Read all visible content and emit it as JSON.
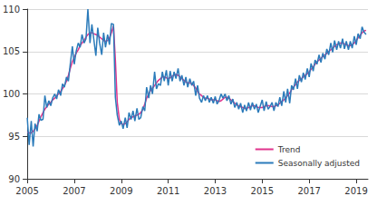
{
  "chart_data": {
    "type": "line",
    "x": [
      2005.0,
      2005.08,
      2005.17,
      2005.25,
      2005.33,
      2005.42,
      2005.5,
      2005.58,
      2005.67,
      2005.75,
      2005.83,
      2005.92,
      2006.0,
      2006.08,
      2006.17,
      2006.25,
      2006.33,
      2006.42,
      2006.5,
      2006.58,
      2006.67,
      2006.75,
      2006.83,
      2006.92,
      2007.0,
      2007.08,
      2007.17,
      2007.25,
      2007.33,
      2007.42,
      2007.5,
      2007.58,
      2007.67,
      2007.75,
      2007.83,
      2007.92,
      2008.0,
      2008.08,
      2008.17,
      2008.25,
      2008.33,
      2008.42,
      2008.5,
      2008.58,
      2008.67,
      2008.75,
      2008.83,
      2008.92,
      2009.0,
      2009.08,
      2009.17,
      2009.25,
      2009.33,
      2009.42,
      2009.5,
      2009.58,
      2009.67,
      2009.75,
      2009.83,
      2009.92,
      2010.0,
      2010.08,
      2010.17,
      2010.25,
      2010.33,
      2010.42,
      2010.5,
      2010.58,
      2010.67,
      2010.75,
      2010.83,
      2010.92,
      2011.0,
      2011.08,
      2011.17,
      2011.25,
      2011.33,
      2011.42,
      2011.5,
      2011.58,
      2011.67,
      2011.75,
      2011.83,
      2011.92,
      2012.0,
      2012.08,
      2012.17,
      2012.25,
      2012.33,
      2012.42,
      2012.5,
      2012.58,
      2012.67,
      2012.75,
      2012.83,
      2012.92,
      2013.0,
      2013.08,
      2013.17,
      2013.25,
      2013.33,
      2013.42,
      2013.5,
      2013.58,
      2013.67,
      2013.75,
      2013.83,
      2013.92,
      2014.0,
      2014.08,
      2014.17,
      2014.25,
      2014.33,
      2014.42,
      2014.5,
      2014.58,
      2014.67,
      2014.75,
      2014.83,
      2014.92,
      2015.0,
      2015.08,
      2015.17,
      2015.25,
      2015.33,
      2015.42,
      2015.5,
      2015.58,
      2015.67,
      2015.75,
      2015.83,
      2015.92,
      2016.0,
      2016.08,
      2016.17,
      2016.25,
      2016.33,
      2016.42,
      2016.5,
      2016.58,
      2016.67,
      2016.75,
      2016.83,
      2016.92,
      2017.0,
      2017.08,
      2017.17,
      2017.25,
      2017.33,
      2017.42,
      2017.5,
      2017.58,
      2017.67,
      2017.75,
      2017.83,
      2017.92,
      2018.0,
      2018.08,
      2018.17,
      2018.25,
      2018.33,
      2018.42,
      2018.5,
      2018.58,
      2018.67,
      2018.75,
      2018.83,
      2018.92,
      2019.0,
      2019.08,
      2019.17,
      2019.25,
      2019.33,
      2019.42
    ],
    "series": [
      {
        "name": "Trend",
        "color": "#e0338c",
        "values": [
          95.5,
          95.4,
          95.4,
          95.6,
          95.9,
          96.3,
          96.8,
          97.3,
          97.8,
          98.2,
          98.5,
          98.8,
          99.0,
          99.3,
          99.5,
          99.8,
          100.0,
          100.3,
          100.6,
          101.0,
          101.5,
          102.2,
          103.0,
          103.8,
          104.3,
          104.8,
          105.2,
          105.7,
          106.0,
          106.3,
          106.7,
          107.0,
          107.2,
          107.2,
          107.1,
          107.0,
          106.9,
          106.7,
          106.5,
          106.3,
          106.2,
          106.3,
          106.6,
          107.2,
          108.0,
          104.0,
          99.0,
          97.0,
          96.5,
          96.4,
          96.5,
          96.7,
          97.0,
          97.2,
          97.3,
          97.4,
          97.5,
          97.6,
          97.8,
          98.2,
          98.8,
          99.5,
          100.0,
          100.4,
          100.7,
          101.0,
          101.3,
          101.6,
          101.8,
          102.0,
          102.0,
          101.9,
          101.8,
          101.9,
          102.1,
          102.2,
          102.3,
          102.2,
          102.0,
          101.8,
          101.6,
          101.4,
          101.3,
          101.3,
          101.2,
          101.0,
          100.7,
          100.3,
          100.0,
          99.8,
          99.6,
          99.5,
          99.5,
          99.4,
          99.3,
          99.3,
          99.3,
          99.2,
          99.1,
          99.2,
          99.4,
          99.6,
          99.6,
          99.5,
          99.3,
          99.1,
          98.9,
          98.7,
          98.6,
          98.5,
          98.4,
          98.3,
          98.3,
          98.4,
          98.5,
          98.6,
          98.6,
          98.5,
          98.4,
          98.4,
          98.4,
          98.5,
          98.6,
          98.6,
          98.6,
          98.5,
          98.5,
          98.6,
          98.7,
          98.9,
          99.1,
          99.3,
          99.5,
          99.8,
          100.1,
          100.5,
          100.8,
          101.1,
          101.4,
          101.6,
          101.8,
          102.0,
          102.2,
          102.4,
          102.6,
          102.9,
          103.2,
          103.5,
          103.8,
          104.0,
          104.2,
          104.4,
          104.6,
          104.8,
          105.0,
          105.2,
          105.4,
          105.6,
          105.8,
          105.9,
          106.0,
          106.0,
          105.9,
          105.8,
          105.7,
          105.7,
          105.8,
          106.0,
          106.3,
          106.6,
          106.9,
          107.2,
          107.4,
          107.5
        ]
      },
      {
        "name": "Seasonally adjusted",
        "color": "#2b7bba",
        "values": [
          97.2,
          94.0,
          96.8,
          93.8,
          96.5,
          95.6,
          97.6,
          96.9,
          97.0,
          99.8,
          98.4,
          99.2,
          98.6,
          99.5,
          100.0,
          99.4,
          100.5,
          99.8,
          101.2,
          100.8,
          102.0,
          101.5,
          103.5,
          105.6,
          103.5,
          105.0,
          106.0,
          105.5,
          107.0,
          106.0,
          106.5,
          110.0,
          106.0,
          108.2,
          106.5,
          104.5,
          107.8,
          106.0,
          104.6,
          107.2,
          105.5,
          107.0,
          105.8,
          108.3,
          108.2,
          99.6,
          97.5,
          96.3,
          96.8,
          95.9,
          97.2,
          96.0,
          97.8,
          97.0,
          98.0,
          96.8,
          98.3,
          97.0,
          97.2,
          98.5,
          98.0,
          100.8,
          99.5,
          101.0,
          100.0,
          102.6,
          100.6,
          101.2,
          101.0,
          102.6,
          101.5,
          102.8,
          101.0,
          102.7,
          101.5,
          102.6,
          101.8,
          103.0,
          101.5,
          102.2,
          101.0,
          102.0,
          100.8,
          101.8,
          101.0,
          101.5,
          99.8,
          101.0,
          99.5,
          99.0,
          99.8,
          99.2,
          99.8,
          99.0,
          99.6,
          98.9,
          99.7,
          98.8,
          99.3,
          100.0,
          99.5,
          100.0,
          99.2,
          99.8,
          98.8,
          99.4,
          98.4,
          99.0,
          98.2,
          98.9,
          97.8,
          98.7,
          98.0,
          99.0,
          98.1,
          99.0,
          98.2,
          98.8,
          97.8,
          98.6,
          99.3,
          98.0,
          99.1,
          98.2,
          98.5,
          99.0,
          98.0,
          99.0,
          98.5,
          99.6,
          98.6,
          100.3,
          99.0,
          100.6,
          98.9,
          101.0,
          100.5,
          101.8,
          100.6,
          102.2,
          101.4,
          102.5,
          101.7,
          103.0,
          102.0,
          103.6,
          102.7,
          104.0,
          103.5,
          104.6,
          103.7,
          104.8,
          104.1,
          105.3,
          104.6,
          106.0,
          104.9,
          106.3,
          105.2,
          106.2,
          105.4,
          106.5,
          105.3,
          106.2,
          105.2,
          106.2,
          105.4,
          106.8,
          105.8,
          107.1,
          106.5,
          107.9,
          107.3,
          107.0
        ]
      }
    ],
    "xlim": [
      2005,
      2019.5
    ],
    "xticks": [
      2005,
      2007,
      2009,
      2011,
      2013,
      2015,
      2017,
      2019
    ],
    "ylim": [
      90,
      110
    ],
    "yticks": [
      90,
      95,
      100,
      105,
      110
    ],
    "grid": true,
    "legend": "lower right"
  }
}
